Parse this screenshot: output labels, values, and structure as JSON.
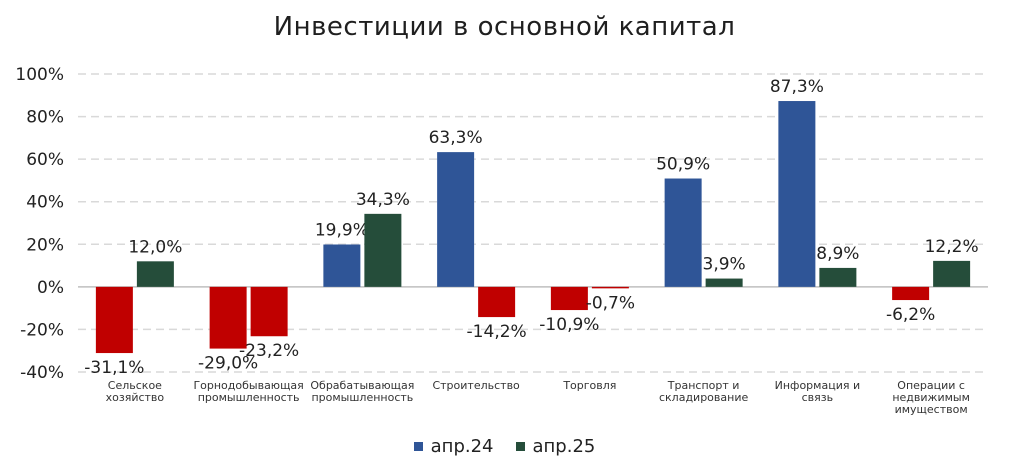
{
  "chart_data": {
    "type": "bar",
    "title": "Инвестиции в основной капитал",
    "categories": [
      [
        "Сельское",
        "хозяйство"
      ],
      [
        "Горнодобывающая",
        "промышленность"
      ],
      [
        "Обрабатывающая",
        "промышленность"
      ],
      [
        "Строительство"
      ],
      [
        "Торговля"
      ],
      [
        "Транспорт  и",
        "складирование"
      ],
      [
        "Информация  и",
        "связь"
      ],
      [
        "Операции с",
        "недвижимым",
        "имуществом"
      ]
    ],
    "series": [
      {
        "name": "апр.24",
        "values": [
          -31.1,
          -29.0,
          19.9,
          63.3,
          -10.9,
          50.9,
          87.3,
          -6.2
        ],
        "color": "#2f5597"
      },
      {
        "name": "апр.25",
        "values": [
          12.0,
          -23.2,
          34.3,
          -14.2,
          -0.7,
          3.9,
          8.9,
          12.2
        ],
        "color": "#254d3a"
      }
    ],
    "negative_color": "#c00000",
    "data_labels": [
      [
        "-31,1%",
        "-29,0%",
        "19,9%",
        "63,3%",
        "-10,9%",
        "50,9%",
        "87,3%",
        "-6,2%"
      ],
      [
        "12,0%",
        "-23,2%",
        "34,3%",
        "-14,2%",
        "-0,7%",
        "3,9%",
        "8,9%",
        "12,2%"
      ]
    ],
    "ylim": [
      -40,
      100
    ],
    "yticks": [
      100,
      80,
      60,
      40,
      20,
      0,
      -20,
      -40
    ],
    "ytick_labels": [
      "100%",
      "80%",
      "60%",
      "40%",
      "20%",
      "0%",
      "-20%",
      "-40%"
    ],
    "grid": true,
    "legend": "bottom"
  }
}
